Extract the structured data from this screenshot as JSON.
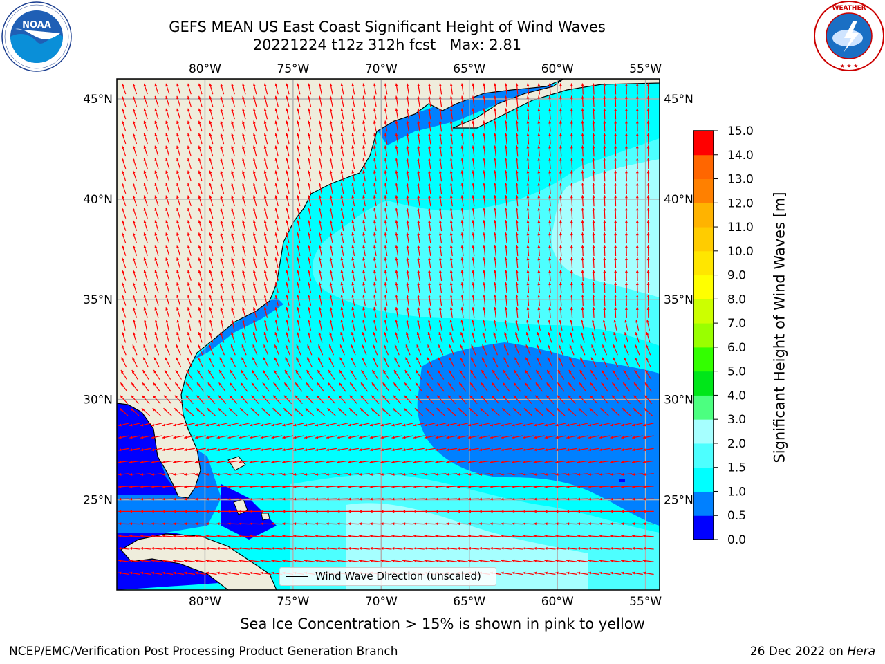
{
  "header": {
    "title_line1": "GEFS MEAN US East Coast Significant Height of Wind Waves",
    "title_line2": "20221224 t12z 312h fcst   Max: 2.81"
  },
  "logos": {
    "left": {
      "name": "NOAA",
      "ring_text": "NATIONAL OCEANIC AND ATMOSPHERIC ADMINISTRATION",
      "ring_text_bottom": "U.S. DEPARTMENT OF COMMERCE"
    },
    "right": {
      "name": "NATIONAL WEATHER SERVICE"
    }
  },
  "map": {
    "lon_ticks": [
      "80°W",
      "75°W",
      "70°W",
      "65°W",
      "60°W",
      "55°W"
    ],
    "lat_ticks": [
      "45°N",
      "40°N",
      "35°N",
      "30°N",
      "25°N"
    ],
    "lon_values": [
      -80,
      -75,
      -70,
      -65,
      -60,
      -55
    ],
    "lat_values": [
      45,
      40,
      35,
      30,
      25
    ],
    "extent": {
      "lon_min": -85,
      "lon_max": -54.2,
      "lat_min": 20.5,
      "lat_max": 46
    },
    "legend": "Wind Wave Direction (unscaled)",
    "colors": {
      "land": "#efeddc",
      "arrow": "#ff0000",
      "grid": "#b0b0b0"
    }
  },
  "colorbar": {
    "label": "Significant Height of Wind Waves [m]",
    "ticks": [
      "15.0",
      "14.0",
      "13.0",
      "12.0",
      "11.0",
      "10.0",
      "9.0",
      "8.0",
      "7.0",
      "6.0",
      "5.0",
      "4.0",
      "3.0",
      "2.0",
      "1.5",
      "1.0",
      "0.5",
      "0.0"
    ],
    "levels": [
      0.0,
      0.5,
      1.0,
      1.5,
      2.0,
      3.0,
      4.0,
      5.0,
      6.0,
      7.0,
      8.0,
      9.0,
      10.0,
      11.0,
      12.0,
      13.0,
      14.0,
      15.0
    ],
    "colors": [
      "#0000ff",
      "#0080ff",
      "#00ffff",
      "#4dffff",
      "#a6ffff",
      "#4cff80",
      "#00e619",
      "#33ff00",
      "#99ff00",
      "#ccff00",
      "#ffff00",
      "#ffe600",
      "#ffcc00",
      "#ffb300",
      "#ff8000",
      "#ff6600",
      "#ff0000"
    ]
  },
  "subtitle": "Sea Ice Concentration > 15% is shown in pink to yellow",
  "footer": {
    "left": "NCEP/EMC/Verification Post Processing Product Generation Branch",
    "right_prefix": "26 Dec 2022 on ",
    "right_machine": "Hera"
  }
}
